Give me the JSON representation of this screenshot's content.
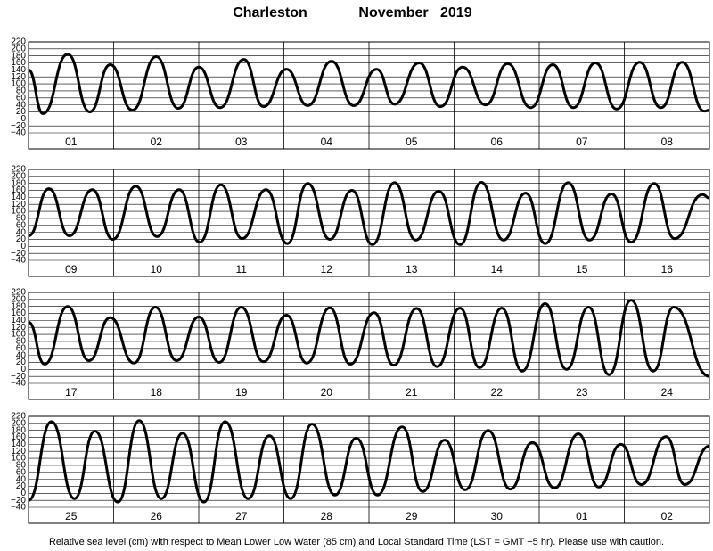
{
  "title": "Charleston",
  "period": "November   2019",
  "note": "Relative sea level (cm) with respect to Mean Lower Low Water (85 cm) and Local Standard Time (LST = GMT −5 hr). Please use with caution.",
  "chart_data": [
    {
      "type": "line",
      "color": "#000000",
      "grid": true,
      "xlim": [
        0,
        8
      ],
      "ylim": [
        -40,
        220
      ],
      "yticks": [
        {
          "value": -40,
          "label": "−40"
        },
        {
          "value": -20,
          "label": "−20"
        },
        0,
        20,
        40,
        60,
        80,
        100,
        120,
        140,
        160,
        180,
        200,
        220
      ],
      "day_labels": [
        "01",
        "02",
        "03",
        "04",
        "05",
        "06",
        "07",
        "08"
      ],
      "x": [
        0,
        0.17,
        0.46,
        0.72,
        0.96,
        1.22,
        1.5,
        1.76,
        2.0,
        2.25,
        2.53,
        2.76,
        3.03,
        3.28,
        3.56,
        3.82,
        4.09,
        4.3,
        4.59,
        4.84,
        5.1,
        5.37,
        5.63,
        5.9,
        6.16,
        6.4,
        6.66,
        6.91,
        7.18,
        7.43,
        7.68,
        7.94,
        8
      ],
      "values": [
        140,
        15,
        185,
        20,
        155,
        25,
        178,
        30,
        148,
        32,
        170,
        35,
        142,
        38,
        165,
        38,
        142,
        42,
        160,
        35,
        148,
        40,
        158,
        32,
        155,
        32,
        160,
        28,
        162,
        32,
        162,
        22,
        25
      ]
    },
    {
      "type": "line",
      "color": "#000000",
      "grid": true,
      "xlim": [
        0,
        8
      ],
      "ylim": [
        -40,
        220
      ],
      "yticks": [
        {
          "value": -40,
          "label": "−40"
        },
        {
          "value": -20,
          "label": "−20"
        },
        0,
        20,
        40,
        60,
        80,
        100,
        120,
        140,
        160,
        180,
        200,
        220
      ],
      "day_labels": [
        "09",
        "10",
        "11",
        "12",
        "13",
        "14",
        "15",
        "16"
      ],
      "x": [
        0,
        0.24,
        0.48,
        0.75,
        0.99,
        1.26,
        1.51,
        1.77,
        2.01,
        2.26,
        2.51,
        2.79,
        3.04,
        3.28,
        3.54,
        3.8,
        4.04,
        4.3,
        4.55,
        4.82,
        5.07,
        5.32,
        5.58,
        5.84,
        6.07,
        6.34,
        6.59,
        6.85,
        7.08,
        7.35,
        7.59,
        7.92,
        8
      ],
      "values": [
        30,
        165,
        30,
        162,
        20,
        172,
        28,
        162,
        12,
        176,
        22,
        162,
        8,
        180,
        20,
        160,
        5,
        182,
        18,
        158,
        5,
        183,
        18,
        152,
        8,
        182,
        18,
        150,
        12,
        180,
        22,
        148,
        138
      ]
    },
    {
      "type": "line",
      "color": "#000000",
      "grid": true,
      "xlim": [
        0,
        8
      ],
      "ylim": [
        -40,
        220
      ],
      "yticks": [
        {
          "value": -40,
          "label": "−40"
        },
        {
          "value": -20,
          "label": "−20"
        },
        0,
        20,
        40,
        60,
        80,
        100,
        120,
        140,
        160,
        180,
        200,
        220
      ],
      "day_labels": [
        "17",
        "18",
        "19",
        "20",
        "21",
        "22",
        "23",
        "24"
      ],
      "x": [
        0,
        0.19,
        0.46,
        0.71,
        0.96,
        1.24,
        1.49,
        1.74,
        2.0,
        2.24,
        2.5,
        2.76,
        3.03,
        3.27,
        3.54,
        3.78,
        4.06,
        4.29,
        4.56,
        4.8,
        5.07,
        5.3,
        5.56,
        5.8,
        6.07,
        6.32,
        6.58,
        6.82,
        7.08,
        7.34,
        7.58,
        8
      ],
      "values": [
        135,
        15,
        180,
        25,
        148,
        18,
        178,
        25,
        150,
        20,
        178,
        22,
        155,
        18,
        176,
        15,
        162,
        12,
        174,
        8,
        175,
        5,
        175,
        -5,
        188,
        0,
        178,
        -15,
        198,
        -5,
        178,
        -20
      ]
    },
    {
      "type": "line",
      "color": "#000000",
      "grid": true,
      "xlim": [
        0,
        8
      ],
      "ylim": [
        -40,
        220
      ],
      "yticks": [
        {
          "value": -40,
          "label": "−40"
        },
        {
          "value": -20,
          "label": "−20"
        },
        0,
        20,
        40,
        60,
        80,
        100,
        120,
        140,
        160,
        180,
        200,
        220
      ],
      "day_labels": [
        "25",
        "26",
        "27",
        "28",
        "29",
        "30",
        "01",
        "02"
      ],
      "x": [
        0,
        0.27,
        0.54,
        0.78,
        1.05,
        1.3,
        1.56,
        1.81,
        2.06,
        2.31,
        2.58,
        2.83,
        3.08,
        3.33,
        3.6,
        3.85,
        4.1,
        4.39,
        4.63,
        4.89,
        5.13,
        5.4,
        5.66,
        5.92,
        6.18,
        6.46,
        6.7,
        6.96,
        7.2,
        7.49,
        7.71,
        8
      ],
      "values": [
        -20,
        205,
        -15,
        178,
        -25,
        208,
        -15,
        172,
        -25,
        205,
        -15,
        165,
        -15,
        198,
        -5,
        158,
        -5,
        190,
        5,
        152,
        10,
        180,
        12,
        145,
        15,
        170,
        18,
        140,
        25,
        162,
        25,
        135
      ]
    }
  ]
}
